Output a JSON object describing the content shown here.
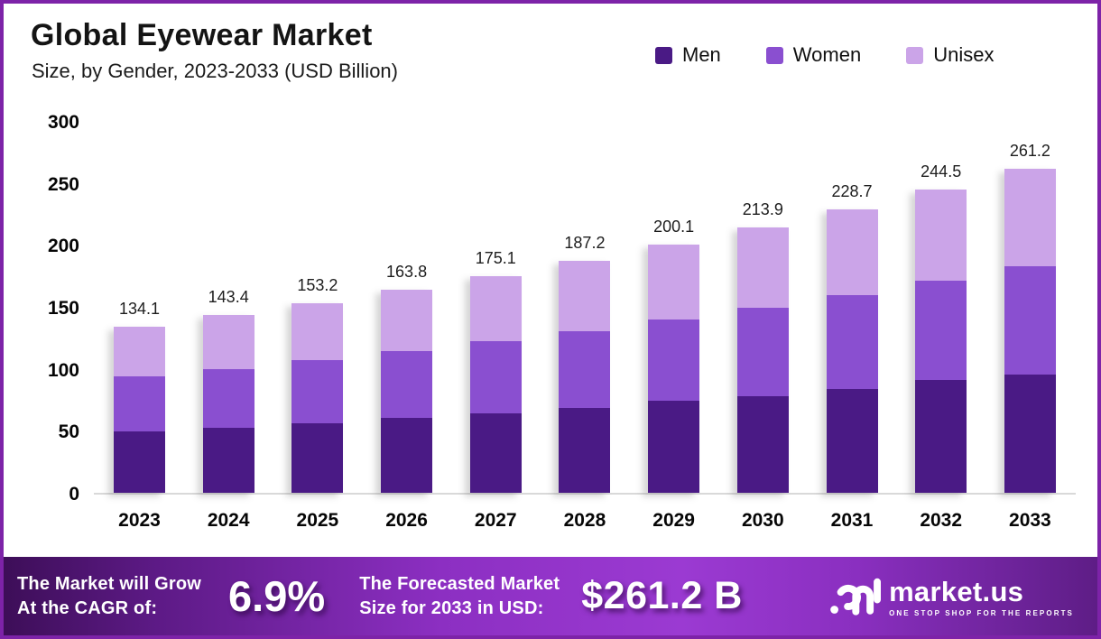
{
  "header": {
    "title": "Global Eyewear Market",
    "subtitle": "Size, by Gender, 2023-2033 (USD Billion)"
  },
  "colors": {
    "men": "#4a1a85",
    "women": "#8a4fd0",
    "unisex": "#cba4e8",
    "frame_border": "#7d23a8",
    "axis_line": "#d9d9d9"
  },
  "legend": {
    "position": "top-right",
    "items": [
      {
        "label": "Men",
        "color": "#4a1a85"
      },
      {
        "label": "Women",
        "color": "#8a4fd0"
      },
      {
        "label": "Unisex",
        "color": "#cba4e8"
      }
    ]
  },
  "chart_data": {
    "type": "bar",
    "stacked": true,
    "title": "Global Eyewear Market",
    "subtitle": "Size, by Gender, 2023-2033 (USD Billion)",
    "xlabel": "",
    "ylabel": "",
    "ylim": [
      0,
      300
    ],
    "yticks": [
      0,
      50,
      100,
      150,
      200,
      250,
      300
    ],
    "grid": false,
    "legend_position": "top-right",
    "categories": [
      "2023",
      "2024",
      "2025",
      "2026",
      "2027",
      "2028",
      "2029",
      "2030",
      "2031",
      "2032",
      "2033"
    ],
    "series": [
      {
        "name": "Men",
        "color": "#4a1a85",
        "values": [
          49.8,
          52.6,
          56.4,
          60.1,
          63.9,
          68.3,
          74.3,
          78.0,
          84.1,
          90.7,
          95.5
        ]
      },
      {
        "name": "Women",
        "color": "#8a4fd0",
        "values": [
          44.1,
          47.4,
          50.7,
          54.3,
          58.4,
          62.0,
          65.7,
          71.1,
          75.4,
          80.5,
          87.6
        ]
      },
      {
        "name": "Unisex",
        "color": "#cba4e8",
        "values": [
          40.2,
          43.4,
          46.1,
          49.4,
          52.8,
          56.9,
          60.1,
          64.8,
          69.2,
          73.3,
          78.1
        ]
      }
    ],
    "totals": [
      134.1,
      143.4,
      153.2,
      163.8,
      175.1,
      187.2,
      200.1,
      213.9,
      228.7,
      244.5,
      261.2
    ],
    "total_labels_shown": true
  },
  "footer": {
    "cagr_label_line1": "The Market will Grow",
    "cagr_label_line2": "At the CAGR of:",
    "cagr_value": "6.9%",
    "forecast_label_line1": "The Forecasted Market",
    "forecast_label_line2": "Size for 2033 in USD:",
    "forecast_value": "$261.2 B",
    "brand": {
      "name": "market.us",
      "tagline": "ONE STOP SHOP FOR THE REPORTS"
    }
  }
}
